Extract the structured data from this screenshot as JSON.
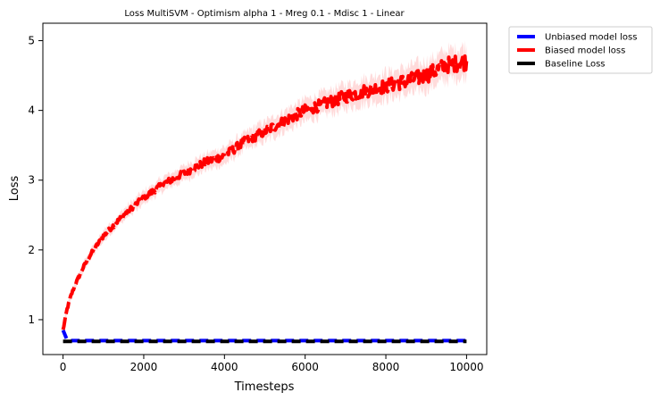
{
  "chart_data": {
    "type": "line",
    "title": "Loss MultiSVM - Optimism alpha 1 - Mreg 0.1 - Mdisc 1 - Linear",
    "xlabel": "Timesteps",
    "ylabel": "Loss",
    "xlim": [
      -500,
      10500
    ],
    "ylim": [
      0.5,
      5.25
    ],
    "xticks": [
      0,
      2000,
      4000,
      6000,
      8000,
      10000
    ],
    "xtick_labels": [
      "0",
      "2000",
      "4000",
      "6000",
      "8000",
      "10000"
    ],
    "yticks": [
      1,
      2,
      3,
      4,
      5
    ],
    "ytick_labels": [
      "1",
      "2",
      "3",
      "4",
      "5"
    ],
    "grid": false,
    "legend": {
      "placement": "outside-top-right"
    },
    "series": [
      {
        "name": "Unbiased model loss",
        "color": "#0000ff",
        "style": "dashed",
        "x": [
          0,
          50,
          100,
          200,
          500,
          1000,
          2000,
          3000,
          4000,
          5000,
          6000,
          7000,
          8000,
          9000,
          10000
        ],
        "y": [
          0.85,
          0.74,
          0.71,
          0.7,
          0.7,
          0.7,
          0.7,
          0.7,
          0.7,
          0.7,
          0.7,
          0.7,
          0.7,
          0.7,
          0.7
        ]
      },
      {
        "name": "Biased model loss",
        "color": "#ff0000",
        "style": "dashed",
        "x": [
          0,
          100,
          200,
          300,
          500,
          700,
          1000,
          1500,
          2000,
          2500,
          3000,
          3500,
          4000,
          4500,
          5000,
          5500,
          6000,
          6500,
          7000,
          7500,
          8000,
          8500,
          9000,
          9500,
          10000
        ],
        "y": [
          0.85,
          1.15,
          1.35,
          1.5,
          1.75,
          1.95,
          2.2,
          2.5,
          2.75,
          2.95,
          3.1,
          3.25,
          3.35,
          3.55,
          3.7,
          3.85,
          4.0,
          4.1,
          4.2,
          4.28,
          4.35,
          4.42,
          4.5,
          4.65,
          4.7
        ]
      },
      {
        "name": "Baseline Loss",
        "color": "#000000",
        "style": "dashed",
        "x": [
          0,
          10000
        ],
        "y": [
          0.69,
          0.69
        ]
      }
    ]
  }
}
